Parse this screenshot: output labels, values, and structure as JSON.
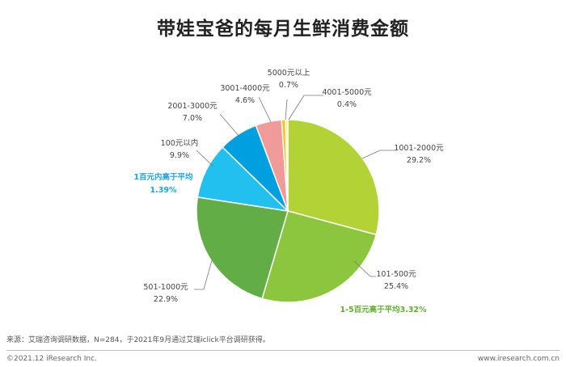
{
  "header": {
    "title": "带娃宝爸的每月生鲜消费金额"
  },
  "chart_data": {
    "type": "pie",
    "title": "带娃宝爸的每月生鲜消费金额",
    "unit": "%",
    "slices": [
      {
        "label": "1001-2000元",
        "value": 29.2,
        "value_label": "29.2%",
        "color": "#b2d235"
      },
      {
        "label": "101-500元",
        "value": 25.4,
        "value_label": "25.4%",
        "color": "#8cc63f"
      },
      {
        "label": "501-1000元",
        "value": 22.9,
        "value_label": "22.9%",
        "color": "#62ad45"
      },
      {
        "label": "100元以内",
        "value": 9.9,
        "value_label": "9.9%",
        "color": "#22c0ee"
      },
      {
        "label": "2001-3000元",
        "value": 7.0,
        "value_label": "7.0%",
        "color": "#009fdf"
      },
      {
        "label": "3001-4000元",
        "value": 4.6,
        "value_label": "4.6%",
        "color": "#f19a9a"
      },
      {
        "label": "5000元以上",
        "value": 0.7,
        "value_label": "0.7%",
        "color": "#f5c518"
      },
      {
        "label": "4001-5000元",
        "value": 0.4,
        "value_label": "0.4%",
        "color": "#ffe98a"
      }
    ],
    "annotations": [
      {
        "line1": "1百元内高于平均",
        "line2": "1.39%",
        "color": "#1aa3e8"
      },
      {
        "line1": "1-5百元高于平均3.32%",
        "color": "#5fae2e"
      }
    ]
  },
  "footer": {
    "source": "来源：艾瑞咨询调研数据，N=284，于2021年9月通过艾瑞iclick平台调研获得。",
    "copyright": "©2021.12 iResearch Inc.",
    "website": "www.iresearch.com.cn"
  }
}
